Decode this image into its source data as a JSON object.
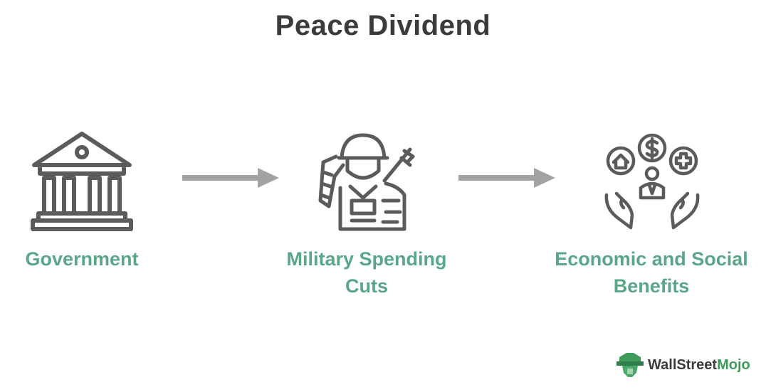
{
  "title": "Peace Dividend",
  "steps": [
    {
      "label_line1": "Government",
      "label_line2": "",
      "icon": "government-building-icon"
    },
    {
      "label_line1": "Military Spending",
      "label_line2": "Cuts",
      "icon": "saluting-soldier-icon"
    },
    {
      "label_line1": "Economic and Social",
      "label_line2": "Benefits",
      "icon": "hands-with-benefits-icon"
    }
  ],
  "brand": {
    "name_part1": "Wall",
    "name_part2": "Street",
    "name_part3": "Mojo",
    "icon": "wallstreetmojo-logo-icon"
  },
  "colors": {
    "label": "#5aa689",
    "icon_stroke": "#5b5b5b",
    "arrow": "#a3a3a3",
    "title": "#3b3b3b",
    "brand_green": "#3f9a5c"
  }
}
